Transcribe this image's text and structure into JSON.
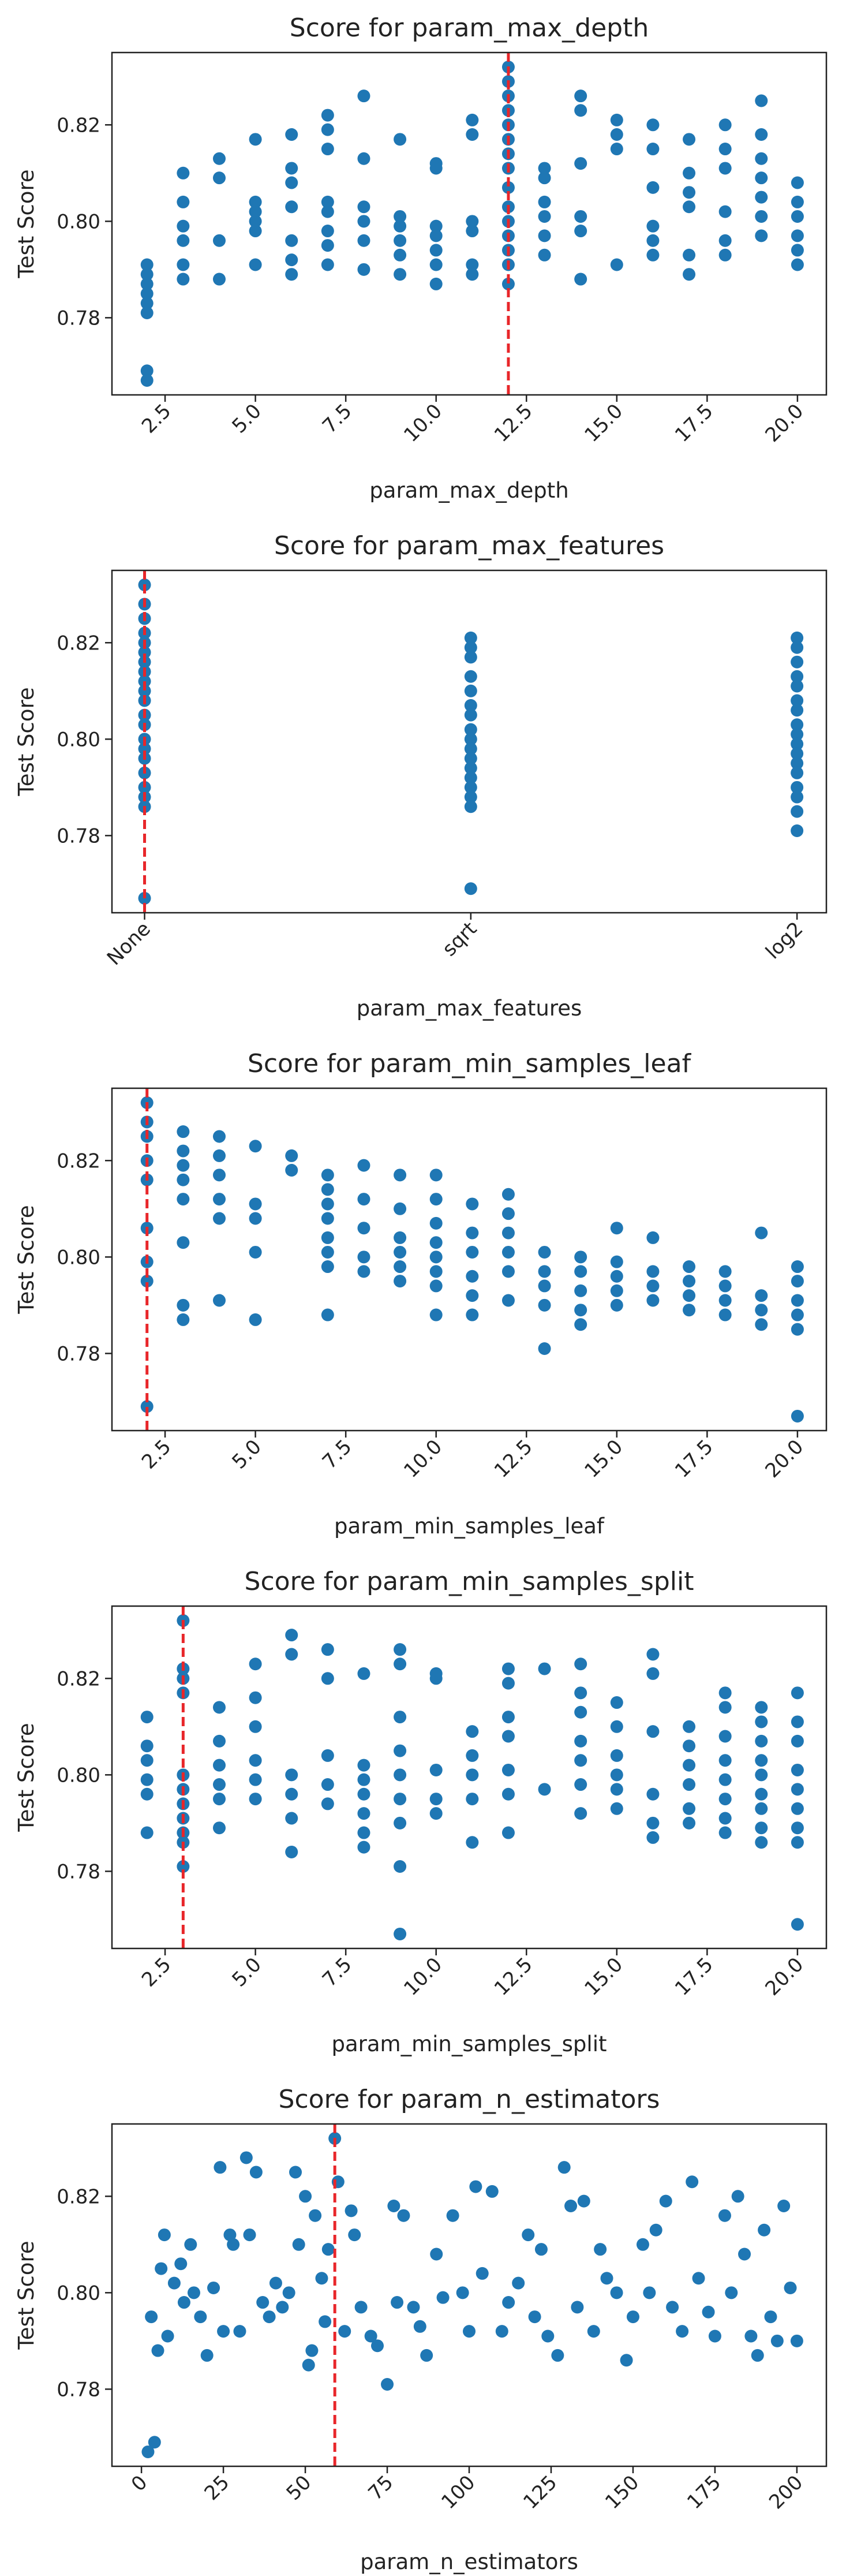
{
  "chart_data": [
    {
      "type": "scatter",
      "title": "Score for param_max_depth",
      "x_label": "param_max_depth",
      "y_label": "Test Score",
      "color": "#1f77b4",
      "vline": {
        "x": 12,
        "color": "#e8262a"
      },
      "xlim": [
        1.03,
        20.8
      ],
      "ylim": [
        0.764,
        0.835
      ],
      "xticks": [
        2.5,
        {
          "value": 5,
          "label": "5.0"
        },
        7.5,
        {
          "value": 10,
          "label": "10.0"
        },
        12.5,
        {
          "value": 15,
          "label": "15.0"
        },
        17.5,
        {
          "value": 20,
          "label": "20.0"
        }
      ],
      "yticks": [
        0.78,
        {
          "value": 0.8,
          "label": "0.80"
        },
        0.82
      ],
      "x": [
        2,
        2,
        2,
        2,
        2,
        2,
        2,
        2,
        3,
        3,
        3,
        3,
        3,
        3,
        4,
        4,
        4,
        4,
        5,
        5,
        5,
        5,
        5,
        5,
        6,
        6,
        6,
        6,
        6,
        6,
        6,
        7,
        7,
        7,
        7,
        7,
        7,
        7,
        7,
        8,
        8,
        8,
        8,
        8,
        8,
        9,
        9,
        9,
        9,
        9,
        9,
        10,
        10,
        10,
        10,
        10,
        10,
        10,
        11,
        11,
        11,
        11,
        11,
        11,
        12,
        12,
        12,
        12,
        12,
        12,
        12,
        12,
        12,
        12,
        12,
        12,
        12,
        12,
        12,
        13,
        13,
        13,
        13,
        13,
        13,
        14,
        14,
        14,
        14,
        14,
        14,
        15,
        15,
        15,
        15,
        16,
        16,
        16,
        16,
        16,
        16,
        17,
        17,
        17,
        17,
        17,
        17,
        18,
        18,
        18,
        18,
        18,
        18,
        19,
        19,
        19,
        19,
        19,
        19,
        19,
        20,
        20,
        20,
        20,
        20,
        20
      ],
      "values": [
        0.791,
        0.789,
        0.787,
        0.785,
        0.783,
        0.781,
        0.769,
        0.767,
        0.81,
        0.804,
        0.799,
        0.796,
        0.791,
        0.788,
        0.813,
        0.809,
        0.796,
        0.788,
        0.817,
        0.804,
        0.802,
        0.8,
        0.798,
        0.791,
        0.818,
        0.811,
        0.808,
        0.803,
        0.796,
        0.792,
        0.789,
        0.822,
        0.819,
        0.815,
        0.804,
        0.802,
        0.798,
        0.795,
        0.791,
        0.826,
        0.813,
        0.803,
        0.8,
        0.796,
        0.79,
        0.817,
        0.801,
        0.799,
        0.796,
        0.793,
        0.789,
        0.812,
        0.811,
        0.799,
        0.797,
        0.794,
        0.791,
        0.787,
        0.821,
        0.818,
        0.8,
        0.798,
        0.791,
        0.789,
        0.832,
        0.829,
        0.826,
        0.823,
        0.82,
        0.817,
        0.814,
        0.811,
        0.807,
        0.803,
        0.8,
        0.797,
        0.794,
        0.791,
        0.787,
        0.811,
        0.809,
        0.804,
        0.801,
        0.797,
        0.793,
        0.826,
        0.823,
        0.812,
        0.801,
        0.798,
        0.788,
        0.821,
        0.818,
        0.815,
        0.791,
        0.82,
        0.815,
        0.807,
        0.799,
        0.796,
        0.793,
        0.817,
        0.81,
        0.806,
        0.803,
        0.793,
        0.789,
        0.82,
        0.815,
        0.811,
        0.802,
        0.796,
        0.793,
        0.825,
        0.818,
        0.813,
        0.809,
        0.805,
        0.801,
        0.797,
        0.808,
        0.804,
        0.801,
        0.797,
        0.794,
        0.791
      ]
    },
    {
      "type": "strip",
      "title": "Score for param_max_features",
      "x_label": "param_max_features",
      "y_label": "Test Score",
      "color": "#1f77b4",
      "vline": {
        "x": "None",
        "color": "#e8262a"
      },
      "xlim": [
        -0.1,
        2.09
      ],
      "ylim": [
        0.764,
        0.835
      ],
      "categories": [
        "None",
        "sqrt",
        "log2"
      ],
      "yticks": [
        0.78,
        {
          "value": 0.8,
          "label": "0.80"
        },
        0.82
      ],
      "values": [
        [
          0.832,
          0.828,
          0.825,
          0.822,
          0.82,
          0.818,
          0.816,
          0.814,
          0.812,
          0.81,
          0.808,
          0.805,
          0.803,
          0.8,
          0.798,
          0.796,
          0.793,
          0.79,
          0.788,
          0.786,
          0.767
        ],
        [
          0.821,
          0.819,
          0.817,
          0.813,
          0.81,
          0.807,
          0.805,
          0.802,
          0.8,
          0.798,
          0.796,
          0.794,
          0.792,
          0.79,
          0.788,
          0.786,
          0.769
        ],
        [
          0.821,
          0.819,
          0.816,
          0.813,
          0.811,
          0.808,
          0.806,
          0.803,
          0.801,
          0.799,
          0.797,
          0.795,
          0.793,
          0.79,
          0.788,
          0.785,
          0.781
        ]
      ]
    },
    {
      "type": "scatter",
      "title": "Score for param_min_samples_leaf",
      "x_label": "param_min_samples_leaf",
      "y_label": "Test Score",
      "color": "#1f77b4",
      "vline": {
        "x": 2,
        "color": "#e8262a"
      },
      "xlim": [
        1.03,
        20.8
      ],
      "ylim": [
        0.764,
        0.835
      ],
      "xticks": [
        2.5,
        {
          "value": 5,
          "label": "5.0"
        },
        7.5,
        {
          "value": 10,
          "label": "10.0"
        },
        12.5,
        {
          "value": 15,
          "label": "15.0"
        },
        17.5,
        {
          "value": 20,
          "label": "20.0"
        }
      ],
      "yticks": [
        0.78,
        {
          "value": 0.8,
          "label": "0.80"
        },
        0.82
      ],
      "x": [
        2,
        2,
        2,
        2,
        2,
        2,
        2,
        2,
        2,
        3,
        3,
        3,
        3,
        3,
        3,
        3,
        3,
        4,
        4,
        4,
        4,
        4,
        4,
        5,
        5,
        5,
        5,
        5,
        6,
        6,
        7,
        7,
        7,
        7,
        7,
        7,
        7,
        7,
        8,
        8,
        8,
        8,
        8,
        9,
        9,
        9,
        9,
        9,
        9,
        10,
        10,
        10,
        10,
        10,
        10,
        10,
        10,
        11,
        11,
        11,
        11,
        11,
        11,
        12,
        12,
        12,
        12,
        12,
        12,
        13,
        13,
        13,
        13,
        13,
        14,
        14,
        14,
        14,
        14,
        15,
        15,
        15,
        15,
        15,
        16,
        16,
        16,
        16,
        17,
        17,
        17,
        17,
        18,
        18,
        18,
        18,
        19,
        19,
        19,
        19,
        20,
        20,
        20,
        20,
        20,
        20
      ],
      "values": [
        0.832,
        0.828,
        0.825,
        0.82,
        0.816,
        0.806,
        0.799,
        0.795,
        0.769,
        0.826,
        0.822,
        0.819,
        0.816,
        0.812,
        0.803,
        0.79,
        0.787,
        0.825,
        0.821,
        0.817,
        0.812,
        0.808,
        0.791,
        0.823,
        0.811,
        0.808,
        0.801,
        0.787,
        0.821,
        0.818,
        0.817,
        0.814,
        0.811,
        0.808,
        0.804,
        0.801,
        0.798,
        0.788,
        0.819,
        0.812,
        0.806,
        0.8,
        0.797,
        0.817,
        0.81,
        0.804,
        0.801,
        0.798,
        0.795,
        0.817,
        0.812,
        0.807,
        0.803,
        0.8,
        0.797,
        0.794,
        0.788,
        0.811,
        0.805,
        0.801,
        0.796,
        0.792,
        0.788,
        0.813,
        0.809,
        0.805,
        0.801,
        0.797,
        0.791,
        0.801,
        0.797,
        0.794,
        0.79,
        0.781,
        0.8,
        0.797,
        0.793,
        0.789,
        0.786,
        0.806,
        0.799,
        0.796,
        0.793,
        0.79,
        0.804,
        0.797,
        0.794,
        0.791,
        0.798,
        0.795,
        0.792,
        0.789,
        0.797,
        0.794,
        0.791,
        0.788,
        0.805,
        0.792,
        0.789,
        0.786,
        0.798,
        0.795,
        0.791,
        0.788,
        0.785,
        0.767
      ]
    },
    {
      "type": "scatter",
      "title": "Score for param_min_samples_split",
      "x_label": "param_min_samples_split",
      "y_label": "Test Score",
      "color": "#1f77b4",
      "vline": {
        "x": 3,
        "color": "#e8262a"
      },
      "xlim": [
        1.03,
        20.8
      ],
      "ylim": [
        0.764,
        0.835
      ],
      "xticks": [
        2.5,
        {
          "value": 5,
          "label": "5.0"
        },
        7.5,
        {
          "value": 10,
          "label": "10.0"
        },
        12.5,
        {
          "value": 15,
          "label": "15.0"
        },
        17.5,
        {
          "value": 20,
          "label": "20.0"
        }
      ],
      "yticks": [
        0.78,
        {
          "value": 0.8,
          "label": "0.80"
        },
        0.82
      ],
      "x": [
        2,
        2,
        2,
        2,
        2,
        2,
        3,
        3,
        3,
        3,
        3,
        3,
        3,
        3,
        3,
        3,
        3,
        4,
        4,
        4,
        4,
        4,
        4,
        5,
        5,
        5,
        5,
        5,
        5,
        6,
        6,
        6,
        6,
        6,
        6,
        7,
        7,
        7,
        7,
        7,
        8,
        8,
        8,
        8,
        8,
        8,
        8,
        9,
        9,
        9,
        9,
        9,
        9,
        9,
        9,
        9,
        10,
        10,
        10,
        10,
        10,
        11,
        11,
        11,
        11,
        11,
        12,
        12,
        12,
        12,
        12,
        12,
        12,
        13,
        13,
        14,
        14,
        14,
        14,
        14,
        14,
        14,
        15,
        15,
        15,
        15,
        15,
        15,
        16,
        16,
        16,
        16,
        16,
        16,
        17,
        17,
        17,
        17,
        17,
        17,
        18,
        18,
        18,
        18,
        18,
        18,
        18,
        18,
        19,
        19,
        19,
        19,
        19,
        19,
        19,
        19,
        19,
        20,
        20,
        20,
        20,
        20,
        20,
        20,
        20,
        20
      ],
      "values": [
        0.812,
        0.806,
        0.803,
        0.799,
        0.796,
        0.788,
        0.832,
        0.822,
        0.82,
        0.817,
        0.8,
        0.797,
        0.794,
        0.791,
        0.788,
        0.786,
        0.781,
        0.814,
        0.807,
        0.802,
        0.798,
        0.795,
        0.789,
        0.823,
        0.816,
        0.81,
        0.803,
        0.799,
        0.795,
        0.829,
        0.825,
        0.8,
        0.796,
        0.791,
        0.784,
        0.826,
        0.82,
        0.804,
        0.798,
        0.794,
        0.821,
        0.802,
        0.799,
        0.796,
        0.792,
        0.788,
        0.785,
        0.826,
        0.823,
        0.812,
        0.805,
        0.8,
        0.795,
        0.79,
        0.781,
        0.767,
        0.821,
        0.82,
        0.801,
        0.795,
        0.792,
        0.809,
        0.804,
        0.8,
        0.795,
        0.786,
        0.822,
        0.819,
        0.812,
        0.808,
        0.801,
        0.796,
        0.788,
        0.822,
        0.797,
        0.823,
        0.817,
        0.813,
        0.807,
        0.803,
        0.798,
        0.792,
        0.815,
        0.81,
        0.804,
        0.8,
        0.797,
        0.793,
        0.825,
        0.821,
        0.809,
        0.796,
        0.79,
        0.787,
        0.81,
        0.806,
        0.802,
        0.798,
        0.793,
        0.79,
        0.817,
        0.814,
        0.808,
        0.803,
        0.799,
        0.795,
        0.791,
        0.788,
        0.814,
        0.811,
        0.807,
        0.803,
        0.8,
        0.796,
        0.793,
        0.789,
        0.786,
        0.817,
        0.811,
        0.807,
        0.801,
        0.797,
        0.793,
        0.789,
        0.786,
        0.769
      ]
    },
    {
      "type": "scatter",
      "title": "Score for param_n_estimators",
      "x_label": "param_n_estimators",
      "y_label": "Test Score",
      "color": "#1f77b4",
      "vline": {
        "x": 59,
        "color": "#e8262a"
      },
      "xlim": [
        -9,
        209
      ],
      "ylim": [
        0.764,
        0.835
      ],
      "xticks": [
        0,
        25,
        50,
        75,
        100,
        125,
        150,
        175,
        200
      ],
      "yticks": [
        0.78,
        {
          "value": 0.8,
          "label": "0.80"
        },
        0.82
      ],
      "x": [
        2,
        4,
        3,
        5,
        6,
        7,
        8,
        10,
        12,
        13,
        15,
        16,
        18,
        20,
        22,
        24,
        25,
        27,
        28,
        30,
        32,
        33,
        35,
        37,
        39,
        41,
        43,
        45,
        47,
        48,
        50,
        51,
        52,
        53,
        55,
        56,
        57,
        59,
        60,
        62,
        64,
        65,
        67,
        70,
        72,
        75,
        77,
        78,
        80,
        83,
        85,
        87,
        90,
        92,
        95,
        98,
        100,
        102,
        104,
        107,
        110,
        112,
        115,
        118,
        120,
        122,
        124,
        127,
        129,
        131,
        133,
        135,
        138,
        140,
        142,
        145,
        148,
        150,
        153,
        155,
        157,
        160,
        162,
        165,
        168,
        170,
        173,
        175,
        178,
        180,
        182,
        184,
        186,
        188,
        190,
        192,
        194,
        196,
        198,
        200
      ],
      "values": [
        0.767,
        0.769,
        0.795,
        0.788,
        0.805,
        0.812,
        0.791,
        0.802,
        0.806,
        0.798,
        0.81,
        0.8,
        0.795,
        0.787,
        0.801,
        0.826,
        0.792,
        0.812,
        0.81,
        0.792,
        0.828,
        0.812,
        0.825,
        0.798,
        0.795,
        0.802,
        0.797,
        0.8,
        0.825,
        0.81,
        0.82,
        0.785,
        0.788,
        0.816,
        0.803,
        0.794,
        0.809,
        0.832,
        0.823,
        0.792,
        0.817,
        0.812,
        0.797,
        0.791,
        0.789,
        0.781,
        0.818,
        0.798,
        0.816,
        0.797,
        0.793,
        0.787,
        0.808,
        0.799,
        0.816,
        0.8,
        0.792,
        0.822,
        0.804,
        0.821,
        0.792,
        0.798,
        0.802,
        0.812,
        0.795,
        0.809,
        0.791,
        0.787,
        0.826,
        0.818,
        0.797,
        0.819,
        0.792,
        0.809,
        0.803,
        0.8,
        0.786,
        0.795,
        0.81,
        0.8,
        0.813,
        0.819,
        0.797,
        0.792,
        0.823,
        0.803,
        0.796,
        0.791,
        0.816,
        0.8,
        0.82,
        0.808,
        0.791,
        0.787,
        0.813,
        0.795,
        0.79,
        0.818,
        0.801,
        0.79
      ]
    }
  ]
}
